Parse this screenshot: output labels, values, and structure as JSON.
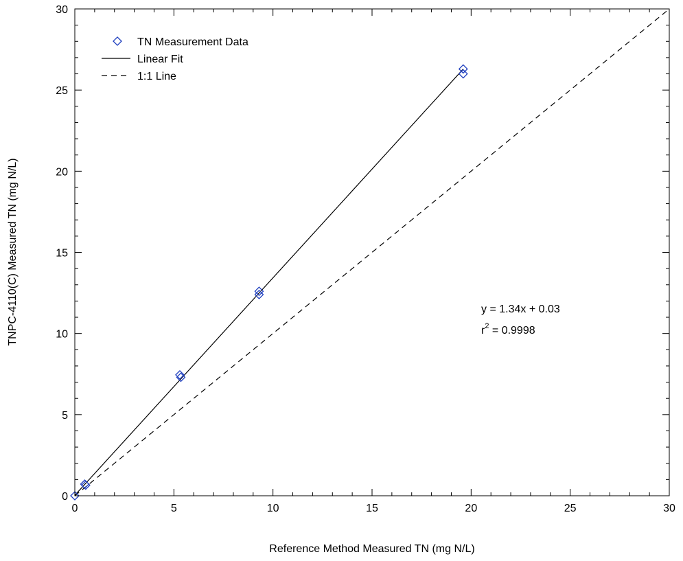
{
  "chart_data": {
    "type": "scatter",
    "xlabel": "Reference Method Measured TN (mg N/L)",
    "ylabel": "TNPC-4110(C) Measured TN (mg N/L)",
    "xlim": [
      0,
      30
    ],
    "ylim": [
      0,
      30
    ],
    "x_major_ticks": [
      0,
      5,
      10,
      15,
      20,
      25,
      30
    ],
    "y_major_ticks": [
      0,
      5,
      10,
      15,
      20,
      25,
      30
    ],
    "minor_tick_step": 1,
    "grid": false,
    "legend_position": "top-left",
    "series": [
      {
        "name": "TN Measurement Data",
        "kind": "points",
        "marker": "diamond",
        "color": "#1f3fbf",
        "points": [
          {
            "x": 0,
            "y": 0
          },
          {
            "x": 0.5,
            "y": 0.72
          },
          {
            "x": 0.55,
            "y": 0.65
          },
          {
            "x": 5.3,
            "y": 7.45
          },
          {
            "x": 5.35,
            "y": 7.3
          },
          {
            "x": 9.3,
            "y": 12.6
          },
          {
            "x": 9.3,
            "y": 12.4
          },
          {
            "x": 19.6,
            "y": 26.3
          },
          {
            "x": 19.6,
            "y": 26.0
          }
        ]
      },
      {
        "name": "Linear Fit",
        "kind": "line",
        "style": "solid",
        "color": "#000000",
        "slope": 1.34,
        "intercept": 0.03,
        "x_range": [
          0,
          19.6
        ]
      },
      {
        "name": "1:1 Line",
        "kind": "line",
        "style": "dashed",
        "color": "#000000",
        "slope": 1,
        "intercept": 0,
        "x_range": [
          0,
          30
        ]
      }
    ],
    "annotation": {
      "equation": "y = 1.34x + 0.03",
      "r_prefix": "r",
      "r_exponent": "2",
      "r_value": " = 0.9998"
    }
  }
}
